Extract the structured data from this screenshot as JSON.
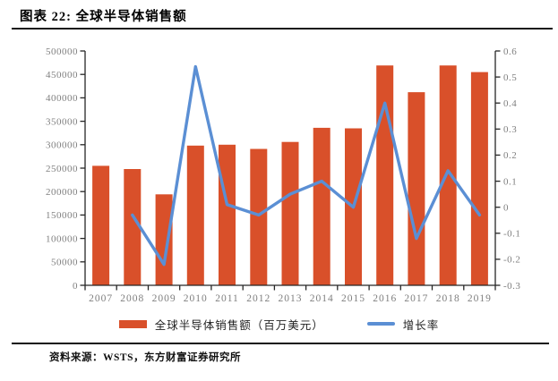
{
  "header": {
    "title": "图表 22: 全球半导体销售额"
  },
  "footer": {
    "source": "资料来源：WSTS，东方财富证券研究所"
  },
  "colors": {
    "bar": "#d9502a",
    "line": "#5b8fd4",
    "axis": "#262626",
    "tick_label": "#7f7f7f",
    "rule": "#1a1a1a"
  },
  "chart_data": {
    "type": "bar",
    "subtype": "bar+line combo, dual axis",
    "title": "全球半导体销售额",
    "categories": [
      "2007",
      "2008",
      "2009",
      "2010",
      "2011",
      "2012",
      "2013",
      "2014",
      "2015",
      "2016",
      "2017",
      "2018",
      "2019"
    ],
    "series": [
      {
        "name": "全球半导体销售额（百万美元）",
        "type": "bar",
        "axis": "left",
        "color": "#d9502a",
        "values": [
          255000,
          248000,
          194000,
          298000,
          300000,
          291000,
          306000,
          336000,
          335000,
          469000,
          412000,
          469000,
          455000
        ]
      },
      {
        "name": "增长率",
        "type": "line",
        "axis": "right",
        "color": "#5b8fd4",
        "values": [
          null,
          -0.03,
          -0.22,
          0.54,
          0.01,
          -0.03,
          0.05,
          0.1,
          0.0,
          0.4,
          -0.12,
          0.14,
          -0.03
        ]
      }
    ],
    "left_axis": {
      "min": 0,
      "max": 500000,
      "step": 50000,
      "labels_top_to_bottom": [
        "500000",
        "450000",
        "400000",
        "350000",
        "300000",
        "250000",
        "200000",
        "150000",
        "100000",
        "50000",
        "0"
      ]
    },
    "right_axis": {
      "min": -0.3,
      "max": 0.6,
      "step": 0.1,
      "labels_top_to_bottom": [
        "0.6",
        "0.5",
        "0.4",
        "0.3",
        "0.2",
        "0.1",
        "0",
        "-0.1",
        "-0.2",
        "-0.3"
      ]
    },
    "grid": false,
    "legend_position": "bottom"
  }
}
